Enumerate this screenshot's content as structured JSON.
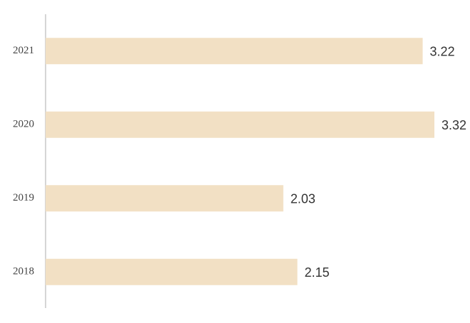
{
  "chart_data": {
    "type": "hbar",
    "categories": [
      "2021",
      "2020",
      "2019",
      "2018"
    ],
    "values": [
      3.22,
      3.32,
      2.03,
      2.15
    ],
    "color": "#f2e0c4",
    "xlim": [
      0,
      3.32
    ]
  }
}
